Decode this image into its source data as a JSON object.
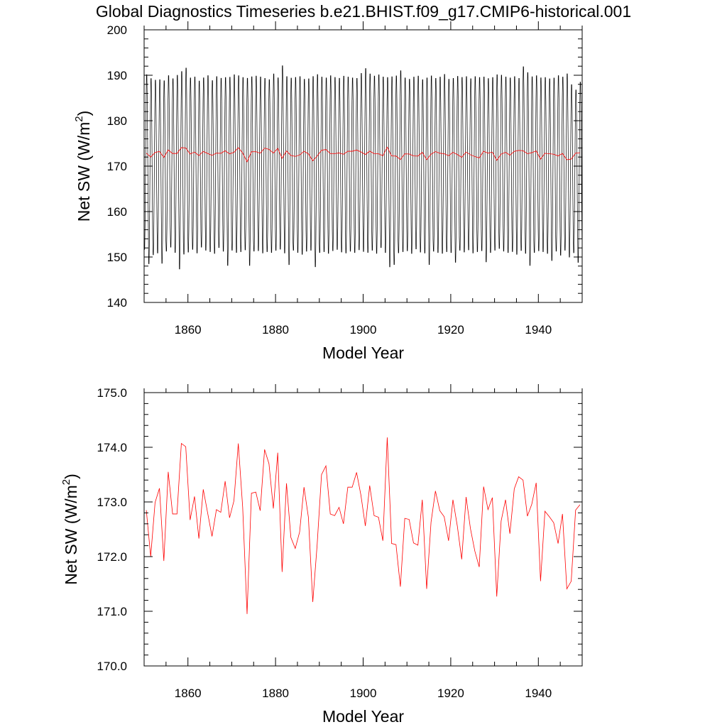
{
  "title": "Global Diagnostics Timeseries b.e21.BHIST.f09_g17.CMIP6-historical.001",
  "chart_data": [
    {
      "type": "line",
      "xlabel": "Model Year",
      "ylabel_main": "Net SW (W/m",
      "ylabel_sup": "2",
      "ylabel_close": ")",
      "xlim": [
        1850,
        1950
      ],
      "ylim": [
        140,
        200
      ],
      "xticks": [
        1860,
        1880,
        1900,
        1920,
        1940
      ],
      "xtick_labels": [
        "1860",
        "1880",
        "1900",
        "1920",
        "1940"
      ],
      "yticks": [
        140,
        150,
        160,
        170,
        180,
        190,
        200
      ],
      "ytick_labels": [
        "140",
        "150",
        "160",
        "170",
        "180",
        "190",
        "200"
      ],
      "grid": false,
      "series": [
        {
          "kind": "monthly",
          "color": "#000000",
          "start_year": 1850,
          "end_year": 1950,
          "yearly_max": [
            190.8,
            190.0,
            189.6,
            189.7,
            189.5,
            190.6,
            189.9,
            190.7,
            191.6,
            192.3,
            190.1,
            190.3,
            189.4,
            190.1,
            190.6,
            189.5,
            190.4,
            190.0,
            190.2,
            190.3,
            190.8,
            190.6,
            190.2,
            190.0,
            190.4,
            190.5,
            190.3,
            190.0,
            189.7,
            191.0,
            190.1,
            192.8,
            190.4,
            190.1,
            190.2,
            190.4,
            189.8,
            189.9,
            190.4,
            190.9,
            190.3,
            190.1,
            190.6,
            190.2,
            190.0,
            190.5,
            190.3,
            190.1,
            190.0,
            191.1,
            192.2,
            191.0,
            190.5,
            190.8,
            190.3,
            190.2,
            190.4,
            190.6,
            191.7,
            190.1,
            189.8,
            190.3,
            190.5,
            189.7,
            190.1,
            190.6,
            190.0,
            190.3,
            190.9,
            189.8,
            190.0,
            190.5,
            190.2,
            190.4,
            189.9,
            190.4,
            190.2,
            190.3,
            190.0,
            190.2,
            190.8,
            190.7,
            190.3,
            190.1,
            190.4,
            190.0,
            192.6,
            191.3,
            190.4,
            190.6,
            190.1,
            190.2,
            189.9,
            190.1,
            190.6,
            190.3,
            191.0,
            188.6,
            187.4,
            189.2
          ],
          "yearly_min": [
            151.0,
            147.8,
            149.8,
            150.2,
            147.9,
            150.6,
            151.5,
            150.3,
            146.6,
            149.9,
            150.4,
            151.0,
            150.2,
            151.5,
            150.8,
            150.5,
            150.1,
            151.4,
            150.6,
            147.4,
            150.8,
            150.3,
            150.5,
            150.9,
            147.4,
            150.6,
            150.7,
            150.2,
            150.5,
            150.3,
            150.8,
            151.0,
            150.2,
            147.6,
            150.8,
            150.3,
            149.9,
            150.6,
            150.8,
            147.1,
            150.3,
            150.5,
            150.1,
            150.7,
            151.0,
            150.4,
            150.2,
            150.6,
            150.3,
            150.9,
            150.5,
            150.3,
            150.8,
            150.1,
            151.4,
            150.3,
            147.1,
            147.6,
            150.2,
            150.5,
            150.7,
            150.1,
            151.1,
            150.4,
            150.2,
            147.6,
            150.6,
            150.3,
            150.1,
            150.5,
            150.3,
            148.1,
            150.8,
            150.4,
            150.9,
            150.2,
            150.5,
            150.7,
            148.2,
            150.3,
            150.8,
            151.2,
            150.6,
            150.3,
            150.5,
            149.9,
            150.7,
            150.1,
            147.4,
            150.3,
            150.7,
            150.5,
            150.1,
            148.5,
            150.6,
            149.7,
            150.8,
            149.3,
            150.3,
            148.1
          ]
        },
        {
          "kind": "annual",
          "color": "#ff0000",
          "ref": "annual_mean"
        }
      ]
    },
    {
      "type": "line",
      "xlabel": "Model Year",
      "ylabel_main": "Net SW (W/m",
      "ylabel_sup": "2",
      "ylabel_close": ")",
      "xlim": [
        1850,
        1950
      ],
      "ylim": [
        170.0,
        175.0
      ],
      "xticks": [
        1860,
        1880,
        1900,
        1920,
        1940
      ],
      "xtick_labels": [
        "1860",
        "1880",
        "1900",
        "1920",
        "1940"
      ],
      "yticks": [
        170,
        171,
        172,
        173,
        174,
        175
      ],
      "ytick_labels": [
        "170.0",
        "171.0",
        "172.0",
        "173.0",
        "174.0",
        "175.0"
      ],
      "grid": false,
      "series": [
        {
          "kind": "annual",
          "color": "#ff0000",
          "ref": "annual_mean"
        }
      ]
    }
  ],
  "annual_mean": {
    "x": [
      1850.5,
      1851.5,
      1852.5,
      1853.5,
      1854.5,
      1855.5,
      1856.5,
      1857.5,
      1858.5,
      1859.5,
      1860.5,
      1861.5,
      1862.5,
      1863.5,
      1864.5,
      1865.5,
      1866.5,
      1867.5,
      1868.5,
      1869.5,
      1870.5,
      1871.5,
      1872.5,
      1873.5,
      1874.5,
      1875.5,
      1876.5,
      1877.5,
      1878.5,
      1879.5,
      1880.5,
      1881.5,
      1882.5,
      1883.5,
      1884.5,
      1885.5,
      1886.5,
      1887.5,
      1888.5,
      1889.5,
      1890.5,
      1891.5,
      1892.5,
      1893.5,
      1894.5,
      1895.5,
      1896.5,
      1897.5,
      1898.5,
      1899.5,
      1900.5,
      1901.5,
      1902.5,
      1903.5,
      1904.5,
      1905.5,
      1906.5,
      1907.5,
      1908.5,
      1909.5,
      1910.5,
      1911.5,
      1912.5,
      1913.5,
      1914.5,
      1915.5,
      1916.5,
      1917.5,
      1918.5,
      1919.5,
      1920.5,
      1921.5,
      1922.5,
      1923.5,
      1924.5,
      1925.5,
      1926.5,
      1927.5,
      1928.5,
      1929.5,
      1930.5,
      1931.5,
      1932.5,
      1933.5,
      1934.5,
      1935.5,
      1936.5,
      1937.5,
      1938.5,
      1939.5,
      1940.5,
      1941.5,
      1942.5,
      1943.5,
      1944.5,
      1945.5,
      1946.5,
      1947.5,
      1948.5,
      1949.5
    ],
    "y": [
      172.85,
      172.0,
      172.99,
      173.25,
      171.92,
      173.55,
      172.78,
      172.78,
      174.07,
      174.01,
      172.67,
      173.1,
      172.33,
      173.23,
      172.8,
      172.37,
      172.86,
      172.81,
      173.38,
      172.71,
      173.02,
      174.07,
      172.9,
      170.95,
      173.16,
      173.18,
      172.84,
      173.96,
      173.7,
      172.88,
      173.9,
      171.72,
      173.34,
      172.35,
      172.15,
      172.45,
      173.27,
      172.72,
      171.17,
      172.22,
      173.5,
      173.66,
      172.78,
      172.75,
      172.9,
      172.6,
      173.27,
      173.27,
      173.54,
      173.12,
      172.56,
      173.3,
      172.75,
      172.72,
      172.29,
      174.18,
      172.24,
      172.22,
      171.45,
      172.7,
      172.68,
      172.25,
      172.21,
      173.04,
      171.41,
      172.63,
      173.2,
      172.84,
      172.73,
      172.29,
      173.04,
      172.56,
      171.95,
      173.09,
      172.51,
      172.1,
      171.81,
      173.28,
      172.86,
      173.08,
      171.27,
      172.65,
      173.04,
      172.42,
      173.24,
      173.46,
      173.4,
      172.74,
      172.96,
      173.35,
      171.55,
      172.83,
      172.73,
      172.62,
      172.24,
      172.78,
      171.41,
      171.55,
      172.85,
      172.95
    ]
  }
}
